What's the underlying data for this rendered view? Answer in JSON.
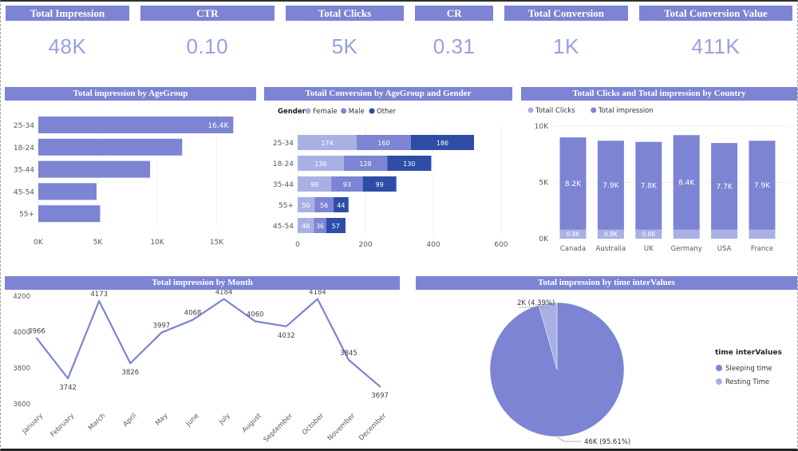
{
  "colors": {
    "accent": "#7c84d3",
    "kpi_value": "#98a0df",
    "bar_light": "#a9b1e4",
    "bar_medium": "#7c84d3",
    "bar_dark": "#2d4da6",
    "axis_text": "#595959",
    "data_label": "#444444"
  },
  "kpis": [
    {
      "label": "Total Impression",
      "value": "48K"
    },
    {
      "label": "CTR",
      "value": "0.10"
    },
    {
      "label": "Total Clicks",
      "value": "5K"
    },
    {
      "label": "CR",
      "value": "0.31"
    },
    {
      "label": "Total Conversion",
      "value": "1K"
    },
    {
      "label": "Total Conversion Value",
      "value": "411K"
    }
  ],
  "panels": {
    "age": {
      "title": "Total impression by AgeGroup"
    },
    "conversion": {
      "title": "Totail Conversion by AgeGroup and Gender"
    },
    "country": {
      "title": "Totail Clicks and Total impression by Country"
    },
    "month": {
      "title": "Total impression by Month"
    },
    "pie": {
      "title": "Total impression by time interValues"
    }
  },
  "chart_data": [
    {
      "id": "age",
      "type": "bar",
      "orientation": "horizontal",
      "title": "Total impression by AgeGroup",
      "categories": [
        "25-34",
        "18-24",
        "35-44",
        "45-54",
        "55+"
      ],
      "values": [
        16400,
        12100,
        9400,
        4900,
        5200
      ],
      "data_labels": [
        "16.4K",
        "",
        "",
        "",
        ""
      ],
      "x_ticks": [
        "0K",
        "5K",
        "10K",
        "15K"
      ],
      "x_tick_values": [
        0,
        5000,
        10000,
        15000
      ],
      "xlim": [
        0,
        17600
      ],
      "grid": true
    },
    {
      "id": "conversion",
      "type": "bar",
      "orientation": "horizontal-stacked",
      "title": "Totail Conversion by AgeGroup and Gender",
      "legend_title": "Gender",
      "categories": [
        "25-34",
        "18-24",
        "35-44",
        "55+",
        "45-54"
      ],
      "series": [
        {
          "name": "Female",
          "color_key": "bar_light",
          "values": [
            174,
            136,
            99,
            50,
            48
          ]
        },
        {
          "name": "Male",
          "color_key": "bar_medium",
          "values": [
            160,
            128,
            93,
            56,
            36
          ]
        },
        {
          "name": "Other",
          "color_key": "bar_dark",
          "values": [
            186,
            130,
            99,
            44,
            57
          ]
        }
      ],
      "x_ticks": [
        "0",
        "200",
        "400",
        "600"
      ],
      "x_tick_values": [
        0,
        200,
        400,
        600
      ],
      "xlim": [
        0,
        620
      ]
    },
    {
      "id": "country",
      "type": "bar",
      "orientation": "vertical-stacked",
      "title": "Totail Clicks and Total impression by Country",
      "categories": [
        "Canada",
        "Australia",
        "UK",
        "Germany",
        "USA",
        "France"
      ],
      "series": [
        {
          "name": "Totail Clicks",
          "color_key": "bar_light",
          "values": [
            800,
            800,
            800,
            800,
            800,
            800
          ],
          "labels": [
            "0.8K",
            "0.8K",
            "0.8K",
            "",
            "",
            ""
          ]
        },
        {
          "name": "Total impression",
          "color_key": "bar_medium",
          "values": [
            8200,
            7900,
            7800,
            8400,
            7700,
            7900
          ],
          "labels": [
            "8.2K",
            "7.9K",
            "7.8K",
            "8.4K",
            "7.7K",
            "7.9K"
          ]
        }
      ],
      "y_ticks": [
        "0K",
        "5K",
        "10K"
      ],
      "y_tick_values": [
        0,
        5000,
        10000
      ],
      "ylim": [
        0,
        10000
      ]
    },
    {
      "id": "month",
      "type": "line",
      "title": "Total impression by Month",
      "categories": [
        "January",
        "February",
        "March",
        "April",
        "May",
        "June",
        "July",
        "August",
        "September",
        "October",
        "November",
        "December"
      ],
      "values": [
        3966,
        3742,
        4173,
        3826,
        3997,
        4068,
        4184,
        4060,
        4032,
        4184,
        3845,
        3697
      ],
      "data_labels": [
        "3966",
        "3742",
        "4173",
        "3826",
        "3997",
        "4068",
        "4184",
        "4060",
        "4032",
        "4184",
        "3845",
        "3697"
      ],
      "label_pos": [
        "above",
        "below",
        "above",
        "below",
        "above",
        "above",
        "above",
        "above",
        "below",
        "above",
        "above",
        "below"
      ],
      "y_ticks": [
        "3600",
        "3800",
        "4000",
        "4200"
      ],
      "y_tick_values": [
        3600,
        3800,
        4000,
        4200
      ],
      "ylim": [
        3600,
        4200
      ]
    },
    {
      "id": "pie",
      "type": "pie",
      "title": "Total impression by time interValues",
      "legend_title": "time interValues",
      "slices": [
        {
          "name": "Sleeping time",
          "value": 46000,
          "pct": 95.61,
          "label": "46K (95.61%)",
          "color_key": "bar_medium"
        },
        {
          "name": "Resting Time",
          "value": 2000,
          "pct": 4.39,
          "label": "2K (4.39%)",
          "color_key": "bar_light"
        }
      ],
      "legend_position": "right"
    }
  ]
}
